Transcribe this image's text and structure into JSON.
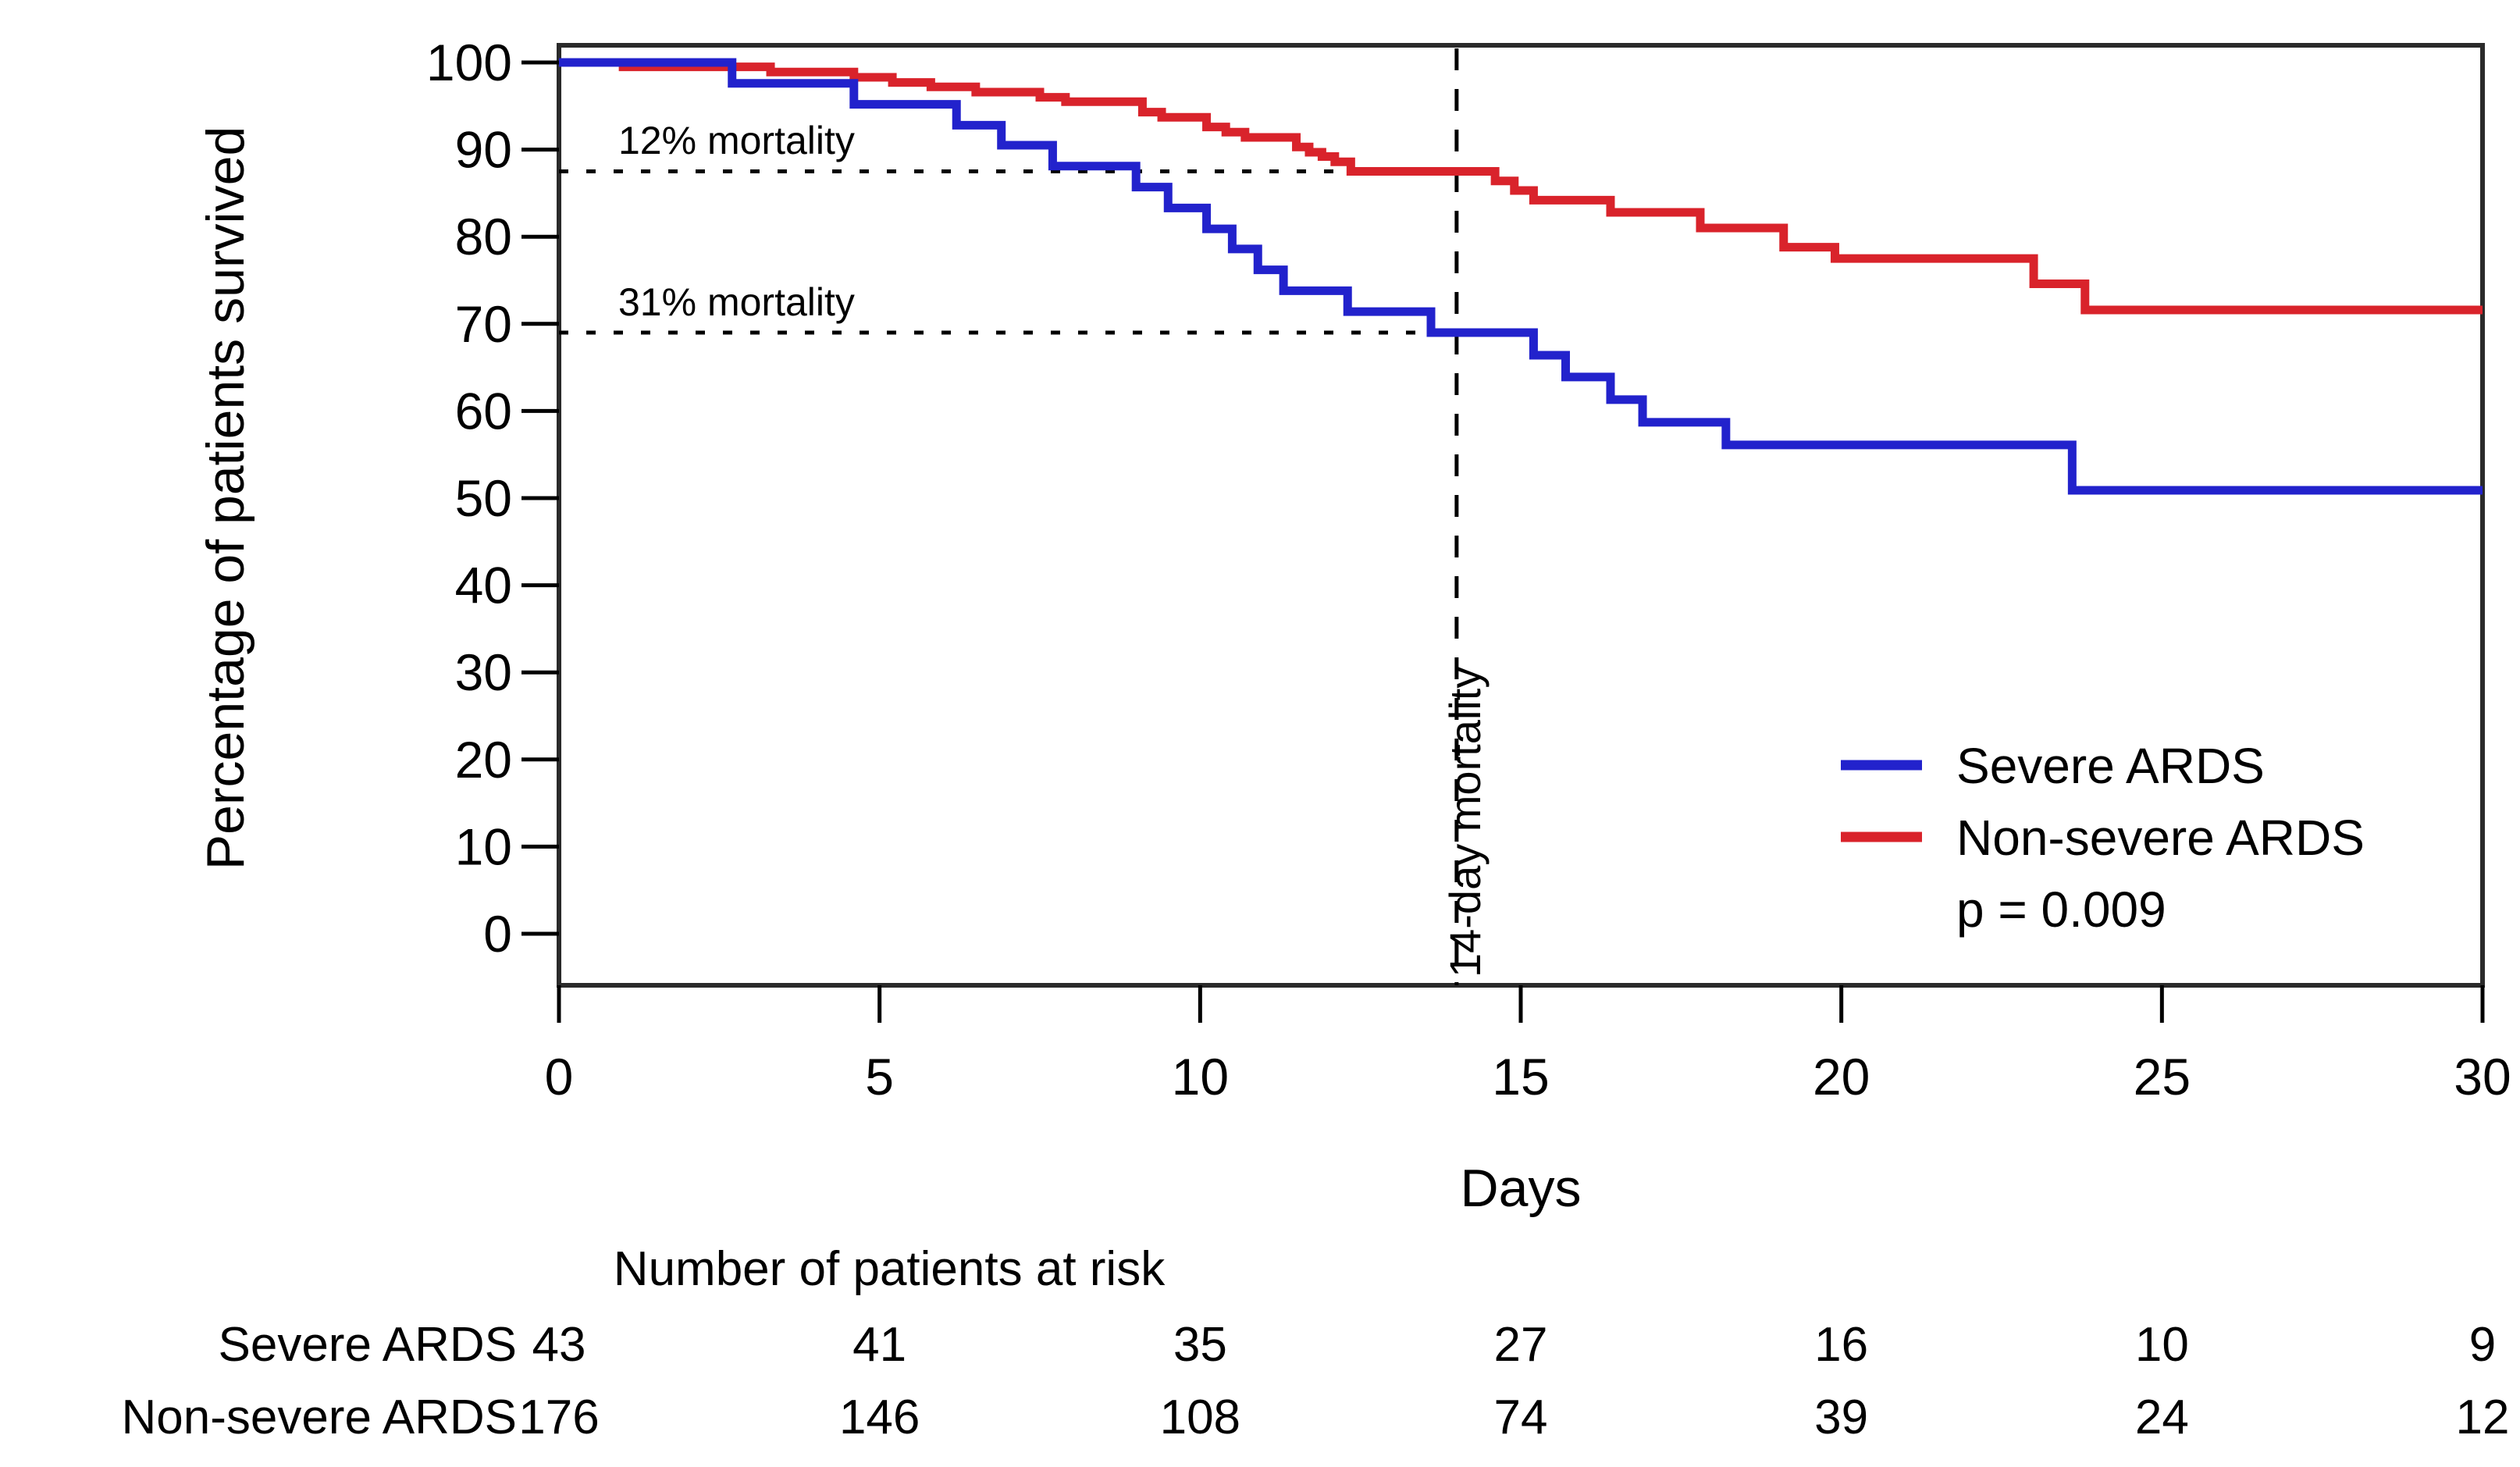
{
  "chart_data": {
    "type": "line",
    "subtype": "kaplan-meier-step",
    "title": "",
    "xlabel": "Days",
    "ylabel": "Percentage of patients survived",
    "xlim": [
      0,
      30
    ],
    "ylim": [
      0,
      100
    ],
    "x_ticks": [
      0,
      5,
      10,
      15,
      20,
      25,
      30
    ],
    "y_ticks": [
      0,
      10,
      20,
      30,
      40,
      50,
      60,
      70,
      80,
      90,
      100
    ],
    "grid": false,
    "legend_position": "lower-right-inside",
    "series": [
      {
        "name": "Severe ARDS",
        "color": "#2222cc",
        "points": [
          [
            0,
            100
          ],
          [
            2.7,
            97.6
          ],
          [
            4.6,
            95.2
          ],
          [
            6.2,
            92.8
          ],
          [
            6.9,
            90.5
          ],
          [
            7.7,
            88.1
          ],
          [
            9.0,
            85.7
          ],
          [
            9.5,
            83.3
          ],
          [
            10.1,
            80.9
          ],
          [
            10.5,
            78.6
          ],
          [
            10.9,
            76.2
          ],
          [
            11.3,
            73.8
          ],
          [
            12.3,
            71.4
          ],
          [
            13.6,
            69.0
          ],
          [
            15.2,
            66.4
          ],
          [
            15.7,
            63.9
          ],
          [
            16.4,
            61.3
          ],
          [
            16.9,
            58.7
          ],
          [
            18.2,
            56.1
          ],
          [
            23.6,
            50.9
          ],
          [
            30,
            50.9
          ]
        ]
      },
      {
        "name": "Non-severe ARDS",
        "color": "#d9232b",
        "points": [
          [
            0,
            100
          ],
          [
            1.0,
            99.5
          ],
          [
            3.3,
            98.9
          ],
          [
            4.6,
            98.3
          ],
          [
            5.2,
            97.7
          ],
          [
            5.8,
            97.2
          ],
          [
            6.5,
            96.6
          ],
          [
            7.5,
            96.0
          ],
          [
            7.9,
            95.5
          ],
          [
            9.1,
            94.3
          ],
          [
            9.4,
            93.7
          ],
          [
            10.1,
            92.6
          ],
          [
            10.4,
            92.0
          ],
          [
            10.7,
            91.4
          ],
          [
            11.5,
            90.3
          ],
          [
            11.7,
            89.7
          ],
          [
            11.9,
            89.2
          ],
          [
            12.1,
            88.6
          ],
          [
            12.35,
            87.5
          ],
          [
            14.6,
            86.4
          ],
          [
            14.9,
            85.3
          ],
          [
            15.2,
            84.2
          ],
          [
            16.4,
            82.8
          ],
          [
            17.8,
            81.0
          ],
          [
            19.1,
            78.8
          ],
          [
            19.9,
            77.5
          ],
          [
            23.0,
            74.6
          ],
          [
            23.8,
            71.6
          ],
          [
            30,
            71.6
          ]
        ]
      }
    ],
    "annotations": {
      "h_lines": [
        {
          "label": "12% mortality",
          "y": 87.5,
          "x_start_day": 0,
          "x_end_day": 14.7
        },
        {
          "label": "31% mortality",
          "y": 69.0,
          "x_start_day": 0,
          "x_end_day": 13.7
        }
      ],
      "v_line": {
        "label": "14-day mortality",
        "x": 14
      }
    },
    "legend": {
      "items": [
        {
          "label": "Severe ARDS",
          "color": "#2222cc"
        },
        {
          "label": "Non-severe ARDS",
          "color": "#d9232b"
        }
      ],
      "p_value": "p = 0.009"
    },
    "risk_table": {
      "title": "Number of patients at risk",
      "days": [
        0,
        5,
        10,
        15,
        20,
        25,
        30
      ],
      "rows": [
        {
          "label": "Severe ARDS",
          "values": [
            43,
            41,
            35,
            27,
            16,
            10,
            9
          ]
        },
        {
          "label": "Non-severe ARDS",
          "values": [
            176,
            146,
            108,
            74,
            39,
            24,
            12
          ]
        }
      ]
    }
  }
}
